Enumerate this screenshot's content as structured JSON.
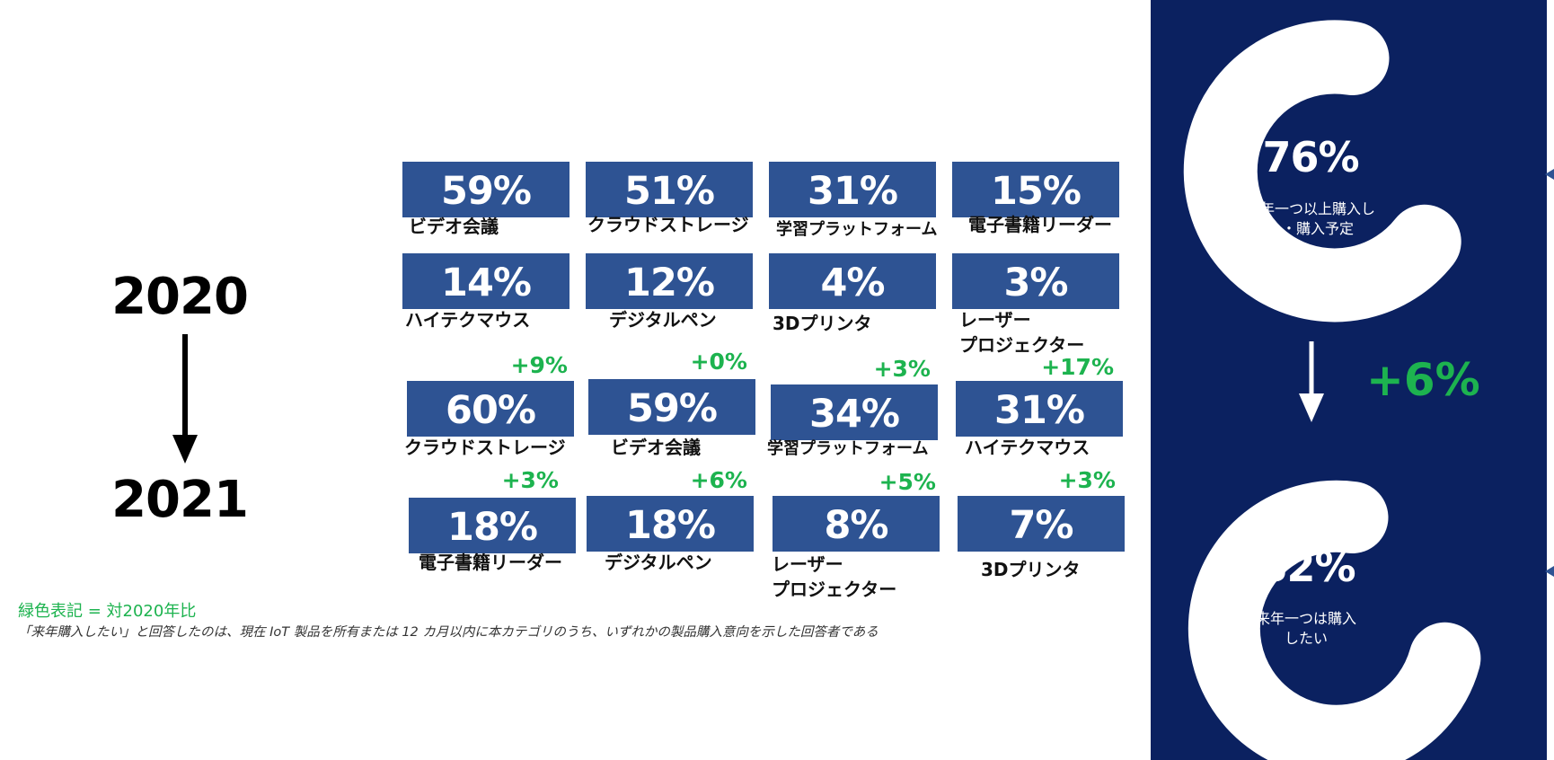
{
  "years": {
    "from": "2020",
    "to": "2021"
  },
  "row1": [
    {
      "pct": "59%",
      "label": "ビデオ会議"
    },
    {
      "pct": "51%",
      "label": "クラウドストレージ"
    },
    {
      "pct": "31%",
      "label": "学習プラットフォーム"
    },
    {
      "pct": "15%",
      "label": "電子書籍リーダー"
    }
  ],
  "row2": [
    {
      "pct": "14%",
      "label": "ハイテクマウス"
    },
    {
      "pct": "12%",
      "label": "デジタルペン"
    },
    {
      "pct": "4%",
      "label": "3Dプリンタ"
    },
    {
      "pct": "3%",
      "label": "レーザー\nプロジェクター"
    }
  ],
  "row3": [
    {
      "pct": "60%",
      "label": "クラウドストレージ",
      "delta": "+9%"
    },
    {
      "pct": "59%",
      "label": "ビデオ会議",
      "delta": "+0%"
    },
    {
      "pct": "34%",
      "label": "学習プラットフォーム",
      "delta": "+3%"
    },
    {
      "pct": "31%",
      "label": "ハイテクマウス",
      "delta": "+17%"
    }
  ],
  "row4": [
    {
      "pct": "18%",
      "label": "電子書籍リーダー",
      "delta": "+3%"
    },
    {
      "pct": "18%",
      "label": "デジタルペン",
      "delta": "+6%"
    },
    {
      "pct": "8%",
      "label": "レーザー\nプロジェクター",
      "delta": "+5%"
    },
    {
      "pct": "7%",
      "label": "3Dプリンタ",
      "delta": "+3%"
    }
  ],
  "notes": {
    "legend": "緑色表記 = 対2020年比",
    "footnote": "「来年購入したい」と回答したのは、現在 IoT 製品を所有または 12 カ月以内に本カテゴリのうち、いずれかの製品購入意向を示した回答者である"
  },
  "panel": {
    "top_pct": "76%",
    "top_desc": "今年一つ以上購入し\nた・購入予定",
    "change": "+6%",
    "bottom_pct": "82%",
    "bottom_desc": "来年一つは購入\nしたい"
  },
  "colors": {
    "tile": "#2e5393",
    "panel": "#0b2160",
    "positive": "#1db34f",
    "ring": "#ffffff"
  }
}
